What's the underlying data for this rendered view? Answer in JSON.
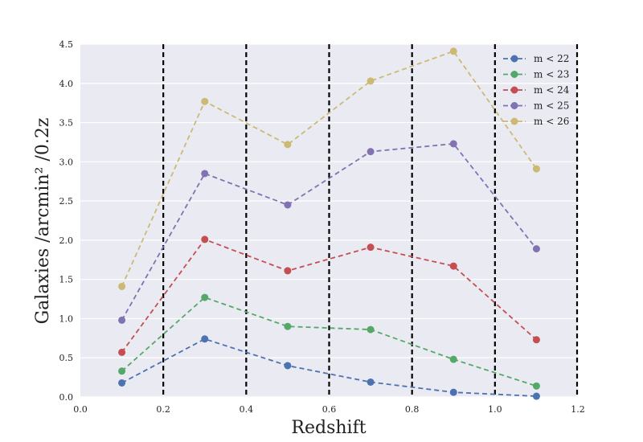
{
  "chart_data": {
    "type": "line",
    "title": "",
    "xlabel": "Redshift",
    "ylabel": "Galaxies /arcmin² /0.2z",
    "xlim": [
      0.0,
      1.2
    ],
    "ylim": [
      0.0,
      4.5
    ],
    "xticks": [
      "0.0",
      "0.2",
      "0.4",
      "0.6",
      "0.8",
      "1.0",
      "1.2"
    ],
    "yticks": [
      "0.0",
      "0.5",
      "1.0",
      "1.5",
      "2.0",
      "2.5",
      "3.0",
      "3.5",
      "4.0",
      "4.5"
    ],
    "grid": true,
    "legend_position": "top-right",
    "x": [
      0.1,
      0.3,
      0.5,
      0.7,
      0.9,
      1.1
    ],
    "vertical_lines": [
      0.2,
      0.4,
      0.6,
      0.8,
      1.0,
      1.2
    ],
    "series": [
      {
        "name": "m < 22",
        "color": "#4c72b0",
        "values": [
          0.18,
          0.74,
          0.4,
          0.19,
          0.06,
          0.01
        ]
      },
      {
        "name": "m < 23",
        "color": "#55a868",
        "values": [
          0.33,
          1.27,
          0.9,
          0.86,
          0.48,
          0.14
        ]
      },
      {
        "name": "m < 24",
        "color": "#c44e52",
        "values": [
          0.57,
          2.01,
          1.61,
          1.91,
          1.67,
          0.73
        ]
      },
      {
        "name": "m < 25",
        "color": "#8172b2",
        "values": [
          0.98,
          2.85,
          2.45,
          3.13,
          3.23,
          1.89
        ]
      },
      {
        "name": "m < 26",
        "color": "#ccb974",
        "values": [
          1.41,
          3.77,
          3.22,
          4.03,
          4.41,
          2.91
        ]
      }
    ]
  }
}
